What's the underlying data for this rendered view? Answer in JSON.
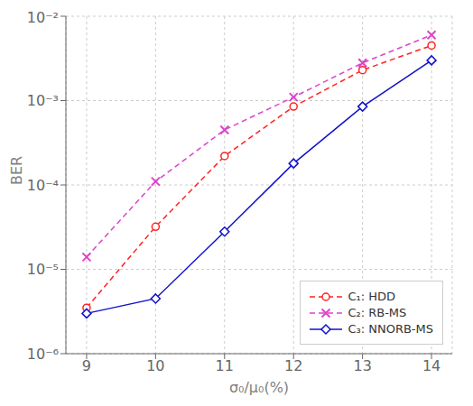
{
  "chart_data": {
    "type": "line",
    "log": "y",
    "grid": true,
    "legend": "lower right",
    "xlabel": "σ₀/μ₀(%)",
    "ylabel": "BER",
    "x": [
      9,
      10,
      11,
      12,
      13,
      14
    ],
    "xlim": [
      8.7,
      14.3
    ],
    "xticks": [
      9,
      10,
      11,
      12,
      13,
      14
    ],
    "ylim": [
      1e-06,
      0.01
    ],
    "yticks": [
      {
        "value": 1e-06,
        "label": "10⁻⁶"
      },
      {
        "value": 1e-05,
        "label": "10⁻⁵"
      },
      {
        "value": 0.0001,
        "label": "10⁻⁴"
      },
      {
        "value": 0.001,
        "label": "10⁻³"
      },
      {
        "value": 0.01,
        "label": "10⁻²"
      }
    ],
    "series": [
      {
        "name": "C₁: HDD",
        "color": "#FF2222",
        "marker": "circle",
        "line_style": "dashed",
        "values": [
          3.5e-06,
          3.2e-05,
          0.00022,
          0.00085,
          0.0023,
          0.0045
        ]
      },
      {
        "name": "C₂: RB-MS",
        "color": "#DD44CC",
        "marker": "x",
        "line_style": "dashed",
        "values": [
          1.4e-05,
          0.00011,
          0.00045,
          0.0011,
          0.0028,
          0.006
        ]
      },
      {
        "name": "C₃: NNORB-MS",
        "color": "#1111CC",
        "marker": "diamond",
        "line_style": "solid",
        "values": [
          3e-06,
          4.5e-06,
          2.8e-05,
          0.00018,
          0.00085,
          0.003
        ]
      }
    ]
  }
}
